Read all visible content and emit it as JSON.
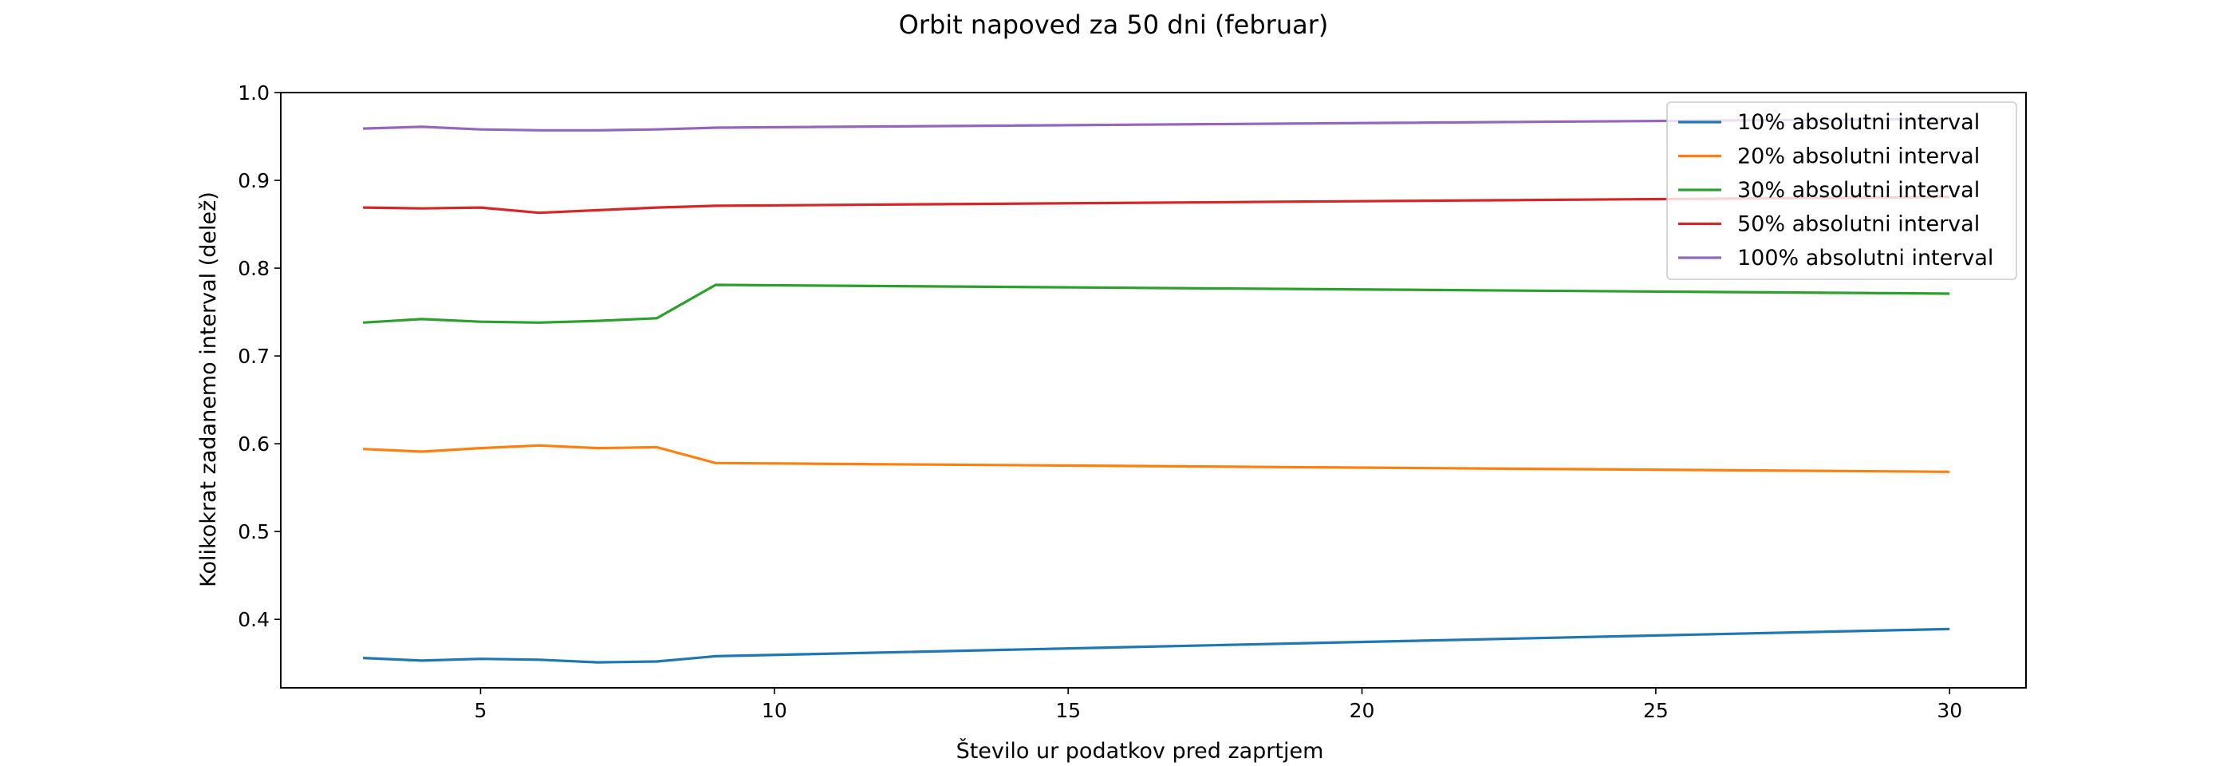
{
  "chart_data": {
    "type": "line",
    "title": "Orbit napoved za 50 dni (februar)",
    "xlabel": "Število ur podatkov pred zaprtjem",
    "ylabel": "Kolikokrat zadanemo interval (delež)",
    "xlim": [
      1.6,
      31.3
    ],
    "ylim": [
      0.322,
      1.0
    ],
    "xticks": [
      5,
      10,
      15,
      20,
      25,
      30
    ],
    "yticks": [
      0.4,
      0.5,
      0.6,
      0.7,
      0.8,
      0.9,
      1.0
    ],
    "grid": false,
    "legend_position": "top-right",
    "x": [
      3,
      4,
      5,
      6,
      7,
      8,
      9,
      30
    ],
    "series": [
      {
        "name": "10% absolutni interval",
        "color": "#1f77b4",
        "values": [
          0.356,
          0.353,
          0.355,
          0.354,
          0.351,
          0.352,
          0.358,
          0.389
        ]
      },
      {
        "name": "20% absolutni interval",
        "color": "#ff7f0e",
        "values": [
          0.594,
          0.591,
          0.595,
          0.598,
          0.595,
          0.596,
          0.578,
          0.568
        ]
      },
      {
        "name": "30% absolutni interval",
        "color": "#2ca02c",
        "values": [
          0.738,
          0.742,
          0.739,
          0.738,
          0.74,
          0.743,
          0.781,
          0.771
        ]
      },
      {
        "name": "50% absolutni interval",
        "color": "#d62728",
        "values": [
          0.869,
          0.868,
          0.869,
          0.863,
          0.866,
          0.869,
          0.871,
          0.881
        ]
      },
      {
        "name": "100% absolutni interval",
        "color": "#9467bd",
        "values": [
          0.959,
          0.961,
          0.958,
          0.957,
          0.957,
          0.958,
          0.96,
          0.97
        ]
      }
    ]
  }
}
